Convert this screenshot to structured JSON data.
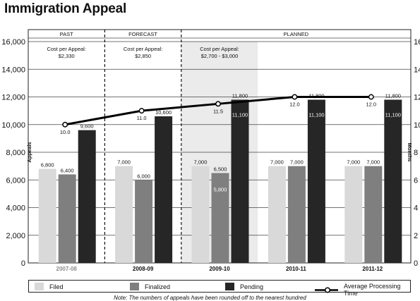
{
  "title": "Immigration Appeal",
  "chart_data": {
    "type": "bar",
    "categories": [
      "2007-08",
      "2008-09",
      "2009-10",
      "2010-11",
      "2011-12"
    ],
    "series": [
      {
        "name": "Filed",
        "values": [
          6800,
          7000,
          7000,
          7000,
          7000
        ],
        "labels": [
          "6,800",
          "7,000",
          "7,000",
          "7,000",
          "7,000"
        ],
        "color": "#d9d9d9"
      },
      {
        "name": "Finalized",
        "values": [
          6400,
          6000,
          6500,
          7000,
          7000
        ],
        "labels": [
          "6,400",
          "6,000",
          "6,500",
          "7,000",
          "7,000"
        ],
        "color": "#7f7f7f"
      },
      {
        "name": "Pending",
        "values": [
          9600,
          10600,
          11800,
          11800,
          11800
        ],
        "labels": [
          "9,600",
          "10,600",
          "11,800",
          "11,800",
          "11,800"
        ],
        "color": "#262626"
      }
    ],
    "inner_labels": {
      "finalized_2009_10": "5,800",
      "pending": [
        "",
        "",
        "11,100",
        "11,100",
        "11,100"
      ]
    },
    "line_series": {
      "name": "Average Processing Time",
      "values": [
        10.0,
        11.0,
        11.5,
        12.0,
        12.0
      ],
      "labels": [
        "10.0",
        "11.0",
        "11.5",
        "12.0",
        "12.0"
      ],
      "color": "#000000"
    },
    "ylabel": "Appeals",
    "y2label": "Months",
    "ylim": [
      0,
      16000
    ],
    "y2lim": [
      0,
      16
    ],
    "y_ticks": [
      "0",
      "2,000",
      "4,000",
      "6,000",
      "8,000",
      "10,000",
      "12,000",
      "14,000",
      "16,000"
    ],
    "y2_ticks": [
      "0",
      "2",
      "4",
      "6",
      "8",
      "10",
      "12",
      "14",
      "16"
    ],
    "periods": [
      "PAST",
      "FORECAST",
      "PLANNED"
    ],
    "cost_labels": [
      {
        "title": "Cost per Appeal:",
        "value": "$2,330"
      },
      {
        "title": "Cost per Appeal:",
        "value": "$2,850"
      },
      {
        "title": "Cost per Appeal:",
        "value": "$2,700 - $3,000"
      }
    ],
    "grid": true,
    "legend_position": "bottom"
  },
  "note": "Note: The numbers of appeals have been rounded off to the nearest hundred"
}
